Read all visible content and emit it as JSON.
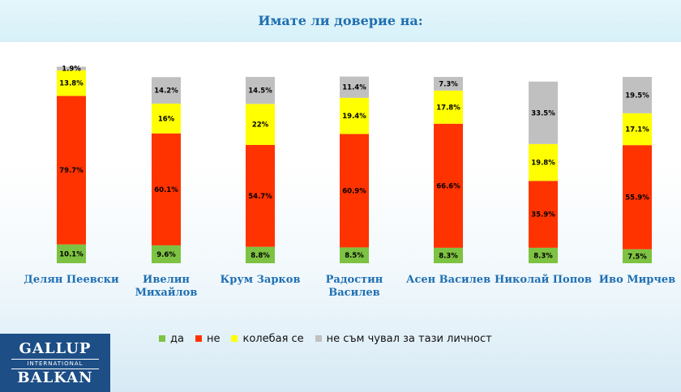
{
  "title": "Имате  ли доверие на:",
  "colors": {
    "da": "#7dc242",
    "ne": "#ff3300",
    "kolebaya": "#ffff00",
    "ne_sam_chuval": "#c0c0c0",
    "category_label": "#1f6fb2"
  },
  "legend": [
    {
      "label": "да",
      "color": "#7dc242"
    },
    {
      "label": "не",
      "color": "#ff3300"
    },
    {
      "label": "колебая се",
      "color": "#ffff00"
    },
    {
      "label": "не съм чувал за тази личност",
      "color": "#c0c0c0"
    }
  ],
  "logo": {
    "top": "GALLUP",
    "middle": "INTERNATIONAL",
    "bottom": "BALKAN"
  },
  "chart_data": {
    "type": "bar",
    "stacked": true,
    "categories": [
      [
        "Делян Пеевски"
      ],
      [
        "Ивелин",
        "Михайлов"
      ],
      [
        "Крум Зарков"
      ],
      [
        "Радостин",
        "Василев"
      ],
      [
        "Асен Василев"
      ],
      [
        "Николай Попов"
      ],
      [
        "Иво Мирчев"
      ]
    ],
    "series": [
      {
        "name": "да",
        "values": [
          10.1,
          9.6,
          8.8,
          8.5,
          8.3,
          8.3,
          7.5
        ]
      },
      {
        "name": "не",
        "values": [
          79.7,
          60.1,
          54.7,
          60.9,
          66.6,
          35.9,
          55.9
        ]
      },
      {
        "name": "колебая се",
        "values": [
          13.8,
          16,
          22,
          19.4,
          17.8,
          19.8,
          17.1
        ]
      },
      {
        "name": "не съм чувал за тази личност",
        "values": [
          1.9,
          14.2,
          14.5,
          11.4,
          7.3,
          33.5,
          19.5
        ]
      }
    ],
    "value_labels": [
      [
        "10.1%",
        "9.6%",
        "8.8%",
        "8.5%",
        "8.3%",
        "8.3%",
        "7.5%"
      ],
      [
        "79.7%",
        "60.1%",
        "54.7%",
        "60.9%",
        "66.6%",
        "35.9%",
        "55.9%"
      ],
      [
        "13.8%",
        "16%",
        "22%",
        "19.4%",
        "17.8%",
        "19.8%",
        "17.1%"
      ],
      [
        "1.9%",
        "14.2%",
        "14.5%",
        "11.4%",
        "7.3%",
        "33.5%",
        "19.5%"
      ]
    ],
    "ylim": [
      0,
      105
    ],
    "grid": false,
    "legend_position": "bottom"
  }
}
